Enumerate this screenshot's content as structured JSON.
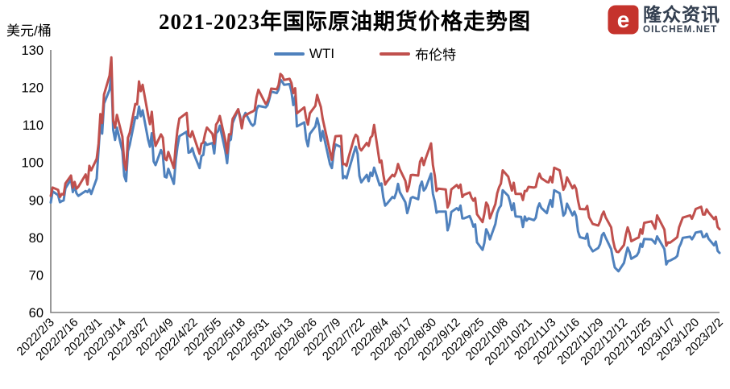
{
  "logo": {
    "icon_letter": "e",
    "brand_cn": "隆众资讯",
    "brand_en": "OILCHEM.NET",
    "icon_color": "#c5332c",
    "text_color": "#333f50"
  },
  "chart_data": {
    "type": "line",
    "title": "2021-2023年国际原油期货价格走势图",
    "ylabel": "美元/桶",
    "xlabel": "",
    "ylim": [
      60,
      130
    ],
    "y_ticks": [
      60,
      70,
      80,
      90,
      100,
      110,
      120,
      130
    ],
    "grid": false,
    "legend_position": "top",
    "axis_color": "#7f7f7f",
    "x_range_days": [
      0,
      364
    ],
    "x_tick_days": [
      0,
      13,
      26,
      39,
      52,
      65,
      78,
      91,
      104,
      117,
      130,
      143,
      156,
      169,
      182,
      195,
      208,
      221,
      234,
      247,
      260,
      273,
      286,
      299,
      312,
      325,
      338,
      351,
      364
    ],
    "x_tick_labels": [
      "2022/2/3",
      "2022/2/16",
      "2022/3/1",
      "2022/3/14",
      "2022/3/27",
      "2022/4/9",
      "2022/4/22",
      "2022/5/5",
      "2022/5/18",
      "2022/5/31",
      "2022/6/13",
      "2022/6/26",
      "2022/7/9",
      "2022/7/22",
      "2022/8/4",
      "2022/8/17",
      "2022/8/30",
      "2022/9/12",
      "2022/9/25",
      "2022/10/8",
      "2022/10/21",
      "2022/11/3",
      "2022/11/16",
      "2022/11/29",
      "2022/12/12",
      "2022/12/25",
      "2023/1/7",
      "2023/1/20",
      "2023/2/2"
    ],
    "days": [
      0,
      1,
      4,
      5,
      6,
      7,
      8,
      11,
      12,
      13,
      14,
      15,
      19,
      20,
      21,
      22,
      25,
      26,
      27,
      28,
      29,
      32,
      33,
      34,
      35,
      36,
      39,
      40,
      41,
      42,
      43,
      46,
      47,
      48,
      49,
      50,
      53,
      54,
      55,
      56,
      57,
      60,
      61,
      62,
      63,
      64,
      67,
      68,
      69,
      70,
      74,
      75,
      76,
      77,
      78,
      81,
      82,
      83,
      84,
      85,
      88,
      89,
      90,
      91,
      92,
      95,
      96,
      97,
      98,
      99,
      102,
      103,
      104,
      105,
      106,
      109,
      110,
      111,
      112,
      113,
      117,
      118,
      119,
      120,
      123,
      124,
      125,
      126,
      127,
      130,
      131,
      132,
      133,
      134,
      138,
      139,
      140,
      141,
      144,
      145,
      146,
      147,
      148,
      152,
      153,
      154,
      155,
      158,
      159,
      160,
      161,
      162,
      165,
      166,
      167,
      168,
      169,
      172,
      173,
      174,
      175,
      176,
      179,
      180,
      181,
      182,
      183,
      186,
      187,
      188,
      189,
      190,
      193,
      194,
      195,
      196,
      197,
      200,
      201,
      202,
      203,
      204,
      207,
      208,
      209,
      210,
      211,
      215,
      216,
      217,
      218,
      221,
      222,
      223,
      224,
      225,
      228,
      229,
      230,
      231,
      232,
      235,
      236,
      237,
      238,
      239,
      242,
      243,
      244,
      245,
      246,
      249,
      250,
      251,
      252,
      253,
      256,
      257,
      258,
      259,
      260,
      263,
      264,
      265,
      266,
      267,
      270,
      271,
      272,
      273,
      274,
      277,
      278,
      279,
      280,
      281,
      284,
      285,
      286,
      287,
      288,
      291,
      292,
      293,
      295,
      298,
      299,
      300,
      301,
      302,
      305,
      306,
      307,
      308,
      309,
      312,
      313,
      314,
      315,
      316,
      319,
      320,
      321,
      322,
      323,
      327,
      328,
      329,
      330,
      334,
      335,
      336,
      337,
      340,
      341,
      342,
      343,
      344,
      348,
      349,
      350,
      351,
      354,
      355,
      356,
      357,
      358,
      361,
      362,
      363,
      364
    ],
    "series": [
      {
        "name": "WTI",
        "color": "#4f81bd",
        "values": [
          89.3,
          92.3,
          91.3,
          89.4,
          89.7,
          89.9,
          93.1,
          95.5,
          92.1,
          93.7,
          91.8,
          91.1,
          92.4,
          92.1,
          92.8,
          91.6,
          95.7,
          103.4,
          110.6,
          107.7,
          115.7,
          119.4,
          123.7,
          108.7,
          106.0,
          109.3,
          103.0,
          96.4,
          95.0,
          103.0,
          104.7,
          112.1,
          111.8,
          114.9,
          112.3,
          113.9,
          106.0,
          104.2,
          107.8,
          100.3,
          99.3,
          103.3,
          102.0,
          96.2,
          96.0,
          98.3,
          94.3,
          100.6,
          104.3,
          107.0,
          108.2,
          102.6,
          102.8,
          103.8,
          102.1,
          98.5,
          101.7,
          102.0,
          105.4,
          104.7,
          105.2,
          102.4,
          107.8,
          108.3,
          109.8,
          103.1,
          99.8,
          105.7,
          106.1,
          110.5,
          114.2,
          112.4,
          109.6,
          112.2,
          113.2,
          110.3,
          109.8,
          110.3,
          114.1,
          115.1,
          114.7,
          115.3,
          116.9,
          118.9,
          118.5,
          119.4,
          122.1,
          121.5,
          120.7,
          120.9,
          118.9,
          115.3,
          117.6,
          109.6,
          110.7,
          106.2,
          104.3,
          107.6,
          109.6,
          111.8,
          109.8,
          105.8,
          108.4,
          99.5,
          98.5,
          102.7,
          104.8,
          104.1,
          95.8,
          96.3,
          95.8,
          97.6,
          102.6,
          104.2,
          102.3,
          96.4,
          94.7,
          96.7,
          95.0,
          97.3,
          96.4,
          98.6,
          93.9,
          94.4,
          90.7,
          88.5,
          89.0,
          90.8,
          90.5,
          91.9,
          94.3,
          92.1,
          89.4,
          86.5,
          88.1,
          90.5,
          90.8,
          90.2,
          93.7,
          94.9,
          92.5,
          93.1,
          97.0,
          91.6,
          89.6,
          86.6,
          86.9,
          86.9,
          81.9,
          83.5,
          86.8,
          87.8,
          87.3,
          88.5,
          85.1,
          85.1,
          85.7,
          84.5,
          82.9,
          83.5,
          78.7,
          76.7,
          78.5,
          82.2,
          81.2,
          79.5,
          83.6,
          86.5,
          87.8,
          88.5,
          92.6,
          91.1,
          89.4,
          87.3,
          89.1,
          85.6,
          85.5,
          82.8,
          85.6,
          84.5,
          85.1,
          84.6,
          85.3,
          87.9,
          89.1,
          87.9,
          86.5,
          88.4,
          90.0,
          88.2,
          92.6,
          91.8,
          88.9,
          85.8,
          86.5,
          89.0,
          85.9,
          86.9,
          85.6,
          81.6,
          80.1,
          79.7,
          81.0,
          77.9,
          76.3,
          77.2,
          78.2,
          80.6,
          81.2,
          80.0,
          76.9,
          74.3,
          72.0,
          71.5,
          71.0,
          73.2,
          75.4,
          77.3,
          76.1,
          74.3,
          75.2,
          76.1,
          78.3,
          77.5,
          79.6,
          79.5,
          79.0,
          78.4,
          80.3,
          76.9,
          72.8,
          73.7,
          73.8,
          74.6,
          75.1,
          77.4,
          78.4,
          79.9,
          80.2,
          79.5,
          80.3,
          81.3,
          81.6,
          80.1,
          80.2,
          81.0,
          79.7,
          77.9,
          78.9,
          76.4,
          75.9
        ]
      },
      {
        "name": "布伦特",
        "color": "#c0504d",
        "values": [
          91.1,
          93.3,
          92.7,
          90.8,
          91.6,
          91.4,
          94.4,
          96.5,
          93.3,
          94.8,
          93.0,
          93.5,
          96.8,
          94.1,
          99.1,
          97.9,
          101.0,
          105.0,
          112.9,
          110.5,
          118.1,
          123.2,
          128.0,
          111.1,
          109.3,
          112.7,
          106.9,
          99.9,
          98.0,
          106.6,
          107.9,
          115.6,
          115.5,
          121.6,
          119.0,
          120.7,
          112.5,
          110.2,
          113.5,
          107.9,
          104.4,
          107.5,
          106.6,
          101.1,
          100.6,
          102.8,
          98.5,
          104.6,
          108.8,
          111.7,
          113.2,
          107.3,
          106.8,
          108.3,
          106.7,
          102.3,
          105.0,
          105.3,
          107.6,
          109.3,
          107.6,
          105.0,
          110.1,
          110.9,
          112.4,
          105.9,
          102.5,
          107.5,
          107.5,
          111.6,
          114.2,
          111.9,
          109.1,
          112.0,
          112.6,
          113.4,
          113.6,
          114.0,
          117.4,
          119.4,
          115.6,
          116.3,
          117.6,
          119.7,
          119.5,
          120.6,
          123.6,
          123.1,
          122.0,
          122.3,
          121.2,
          118.5,
          119.8,
          113.1,
          114.7,
          111.7,
          110.1,
          113.1,
          115.1,
          118.0,
          116.3,
          114.8,
          111.6,
          102.8,
          100.7,
          104.7,
          107.0,
          107.1,
          99.5,
          99.6,
          99.1,
          101.2,
          106.3,
          107.4,
          106.9,
          103.9,
          103.2,
          105.2,
          104.4,
          106.6,
          107.1,
          110.0,
          100.0,
          100.5,
          96.8,
          94.1,
          94.9,
          96.7,
          96.3,
          97.4,
          99.6,
          98.2,
          95.1,
          92.3,
          93.7,
          96.6,
          96.7,
          96.5,
          100.2,
          101.2,
          99.3,
          101.0,
          105.1,
          99.3,
          96.5,
          92.4,
          93.0,
          92.8,
          88.0,
          89.2,
          92.8,
          94.0,
          93.2,
          94.1,
          90.8,
          91.4,
          92.0,
          90.6,
          89.8,
          90.5,
          86.2,
          84.1,
          86.3,
          89.3,
          88.5,
          85.1,
          88.9,
          91.8,
          93.4,
          94.4,
          97.9,
          96.2,
          94.3,
          92.5,
          94.6,
          91.6,
          91.6,
          90.0,
          92.4,
          92.4,
          93.5,
          93.3,
          93.5,
          95.7,
          97.0,
          95.8,
          94.8,
          94.7,
          96.2,
          94.7,
          98.6,
          97.9,
          95.4,
          92.7,
          93.7,
          96.0,
          93.1,
          93.9,
          92.9,
          89.8,
          87.6,
          87.5,
          88.4,
          85.4,
          83.6,
          83.2,
          84.3,
          86.0,
          86.9,
          85.4,
          82.7,
          79.4,
          77.2,
          76.2,
          76.1,
          78.0,
          80.7,
          82.7,
          81.2,
          79.0,
          79.8,
          80.0,
          82.2,
          81.0,
          83.9,
          84.3,
          83.3,
          82.3,
          85.9,
          82.1,
          77.8,
          78.7,
          78.6,
          79.7,
          80.1,
          82.7,
          84.0,
          85.3,
          85.9,
          85.0,
          86.2,
          87.6,
          88.2,
          86.1,
          86.1,
          87.5,
          86.7,
          84.9,
          85.5,
          82.8,
          82.2
        ]
      }
    ]
  }
}
